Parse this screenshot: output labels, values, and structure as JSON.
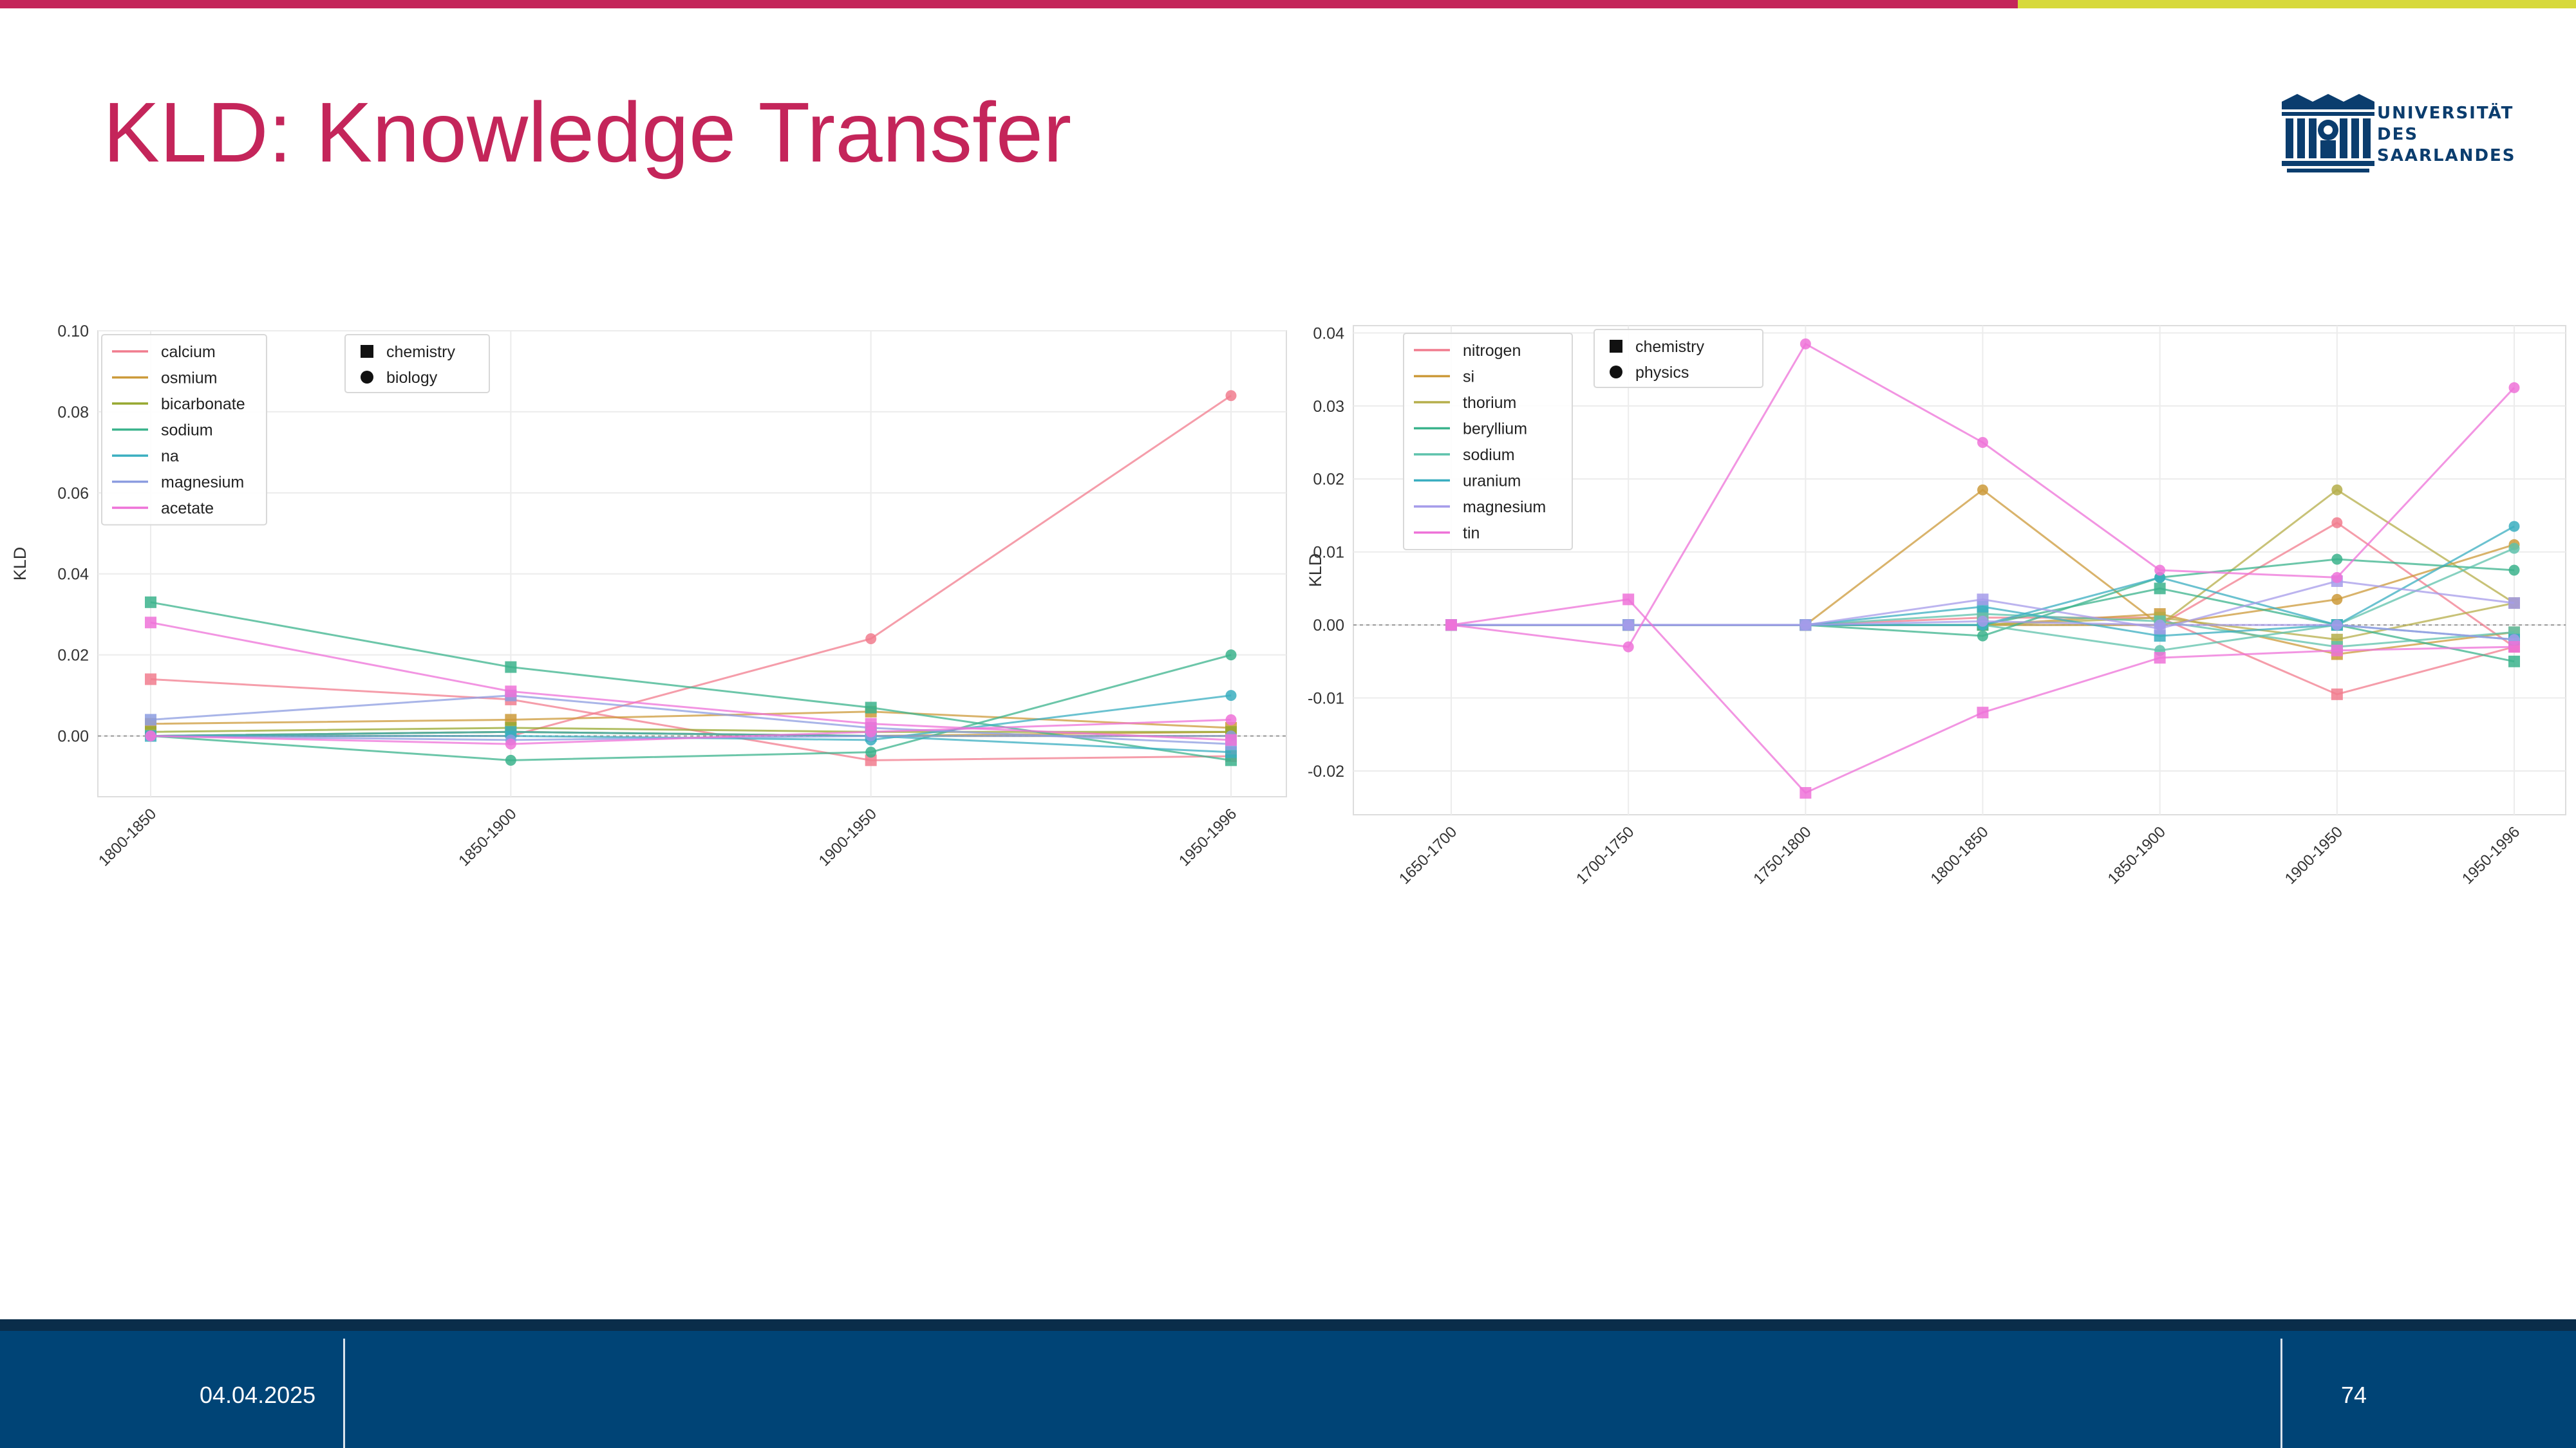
{
  "slide": {
    "title": "KLD: Knowledge Transfer",
    "date": "04.04.2025",
    "page_number": "74",
    "logo_text": [
      "UNIVERSITÄT",
      "DES",
      "SAARLANDES"
    ],
    "colors": {
      "accent": "#c4255a",
      "accent2": "#d7d93b",
      "footer": "#004476"
    }
  },
  "chart_data": [
    {
      "type": "line",
      "ylabel": "KLD",
      "xlabel": "",
      "categories": [
        "1800-1850",
        "1850-1900",
        "1900-1950",
        "1950-1996"
      ],
      "ylim": [
        -0.015,
        0.1
      ],
      "yticks": [
        "0.10",
        "0.08",
        "0.06",
        "0.04",
        "0.02",
        "0.00"
      ],
      "ytick_values": [
        0.1,
        0.08,
        0.06,
        0.04,
        0.02,
        0.0
      ],
      "grid": true,
      "legend_placement": "top-left",
      "markers": [
        {
          "label": "chemistry",
          "shape": "square"
        },
        {
          "label": "biology",
          "shape": "circle"
        }
      ],
      "series": [
        {
          "name": "calcium",
          "color": "#f17c8e",
          "chemistry": [
            0.014,
            0.009,
            -0.006,
            -0.005
          ],
          "biology": [
            0.0,
            0.0,
            0.024,
            0.084
          ]
        },
        {
          "name": "osmium",
          "color": "#cc9a3a",
          "chemistry": [
            0.003,
            0.004,
            0.006,
            0.002
          ],
          "biology": [
            0.0,
            0.001,
            0.0,
            0.001
          ]
        },
        {
          "name": "bicarbonate",
          "color": "#97a830",
          "chemistry": [
            0.001,
            0.002,
            0.001,
            0.001
          ],
          "biology": [
            0.0,
            0.001,
            0.0,
            0.0
          ]
        },
        {
          "name": "sodium",
          "color": "#3bb38c",
          "chemistry": [
            0.033,
            0.017,
            0.007,
            -0.006
          ],
          "biology": [
            0.0,
            -0.006,
            -0.004,
            0.02
          ]
        },
        {
          "name": "na",
          "color": "#3aaec0",
          "chemistry": [
            0.0,
            0.001,
            0.0,
            -0.004
          ],
          "biology": [
            0.0,
            0.0,
            -0.001,
            0.01
          ]
        },
        {
          "name": "magnesium",
          "color": "#8c9ce0",
          "chemistry": [
            0.004,
            0.01,
            0.002,
            -0.002
          ],
          "biology": [
            0.0,
            -0.001,
            0.0,
            0.0
          ]
        },
        {
          "name": "acetate",
          "color": "#ee72d8",
          "chemistry": [
            0.028,
            0.011,
            0.003,
            -0.001
          ],
          "biology": [
            0.0,
            -0.002,
            0.001,
            0.004
          ]
        }
      ]
    },
    {
      "type": "line",
      "ylabel": "KLD",
      "xlabel": "",
      "categories": [
        "1650-1700",
        "1700-1750",
        "1750-1800",
        "1800-1850",
        "1850-1900",
        "1900-1950",
        "1950-1996"
      ],
      "ylim": [
        -0.026,
        0.041
      ],
      "yticks": [
        "0.04",
        "0.03",
        "0.02",
        "0.01",
        "0.00",
        "-0.01",
        "-0.02"
      ],
      "ytick_values": [
        0.04,
        0.03,
        0.02,
        0.01,
        0.0,
        -0.01,
        -0.02
      ],
      "grid": true,
      "legend_placement": "top-left",
      "markers": [
        {
          "label": "chemistry",
          "shape": "square"
        },
        {
          "label": "physics",
          "shape": "circle"
        }
      ],
      "series": [
        {
          "name": "nitrogen",
          "color": "#f17c8e",
          "chemistry": [
            0.0,
            0.0,
            0.0,
            0.001,
            0.001,
            -0.0095,
            -0.003
          ],
          "physics": [
            0.0,
            0.0,
            0.0,
            0.0,
            0.0,
            0.014,
            -0.003
          ]
        },
        {
          "name": "si",
          "color": "#cc9a3a",
          "chemistry": [
            0.0,
            0.0,
            0.0,
            0.0,
            0.0015,
            -0.004,
            -0.001
          ],
          "physics": [
            0.0,
            0.0,
            0.0,
            0.0185,
            0.0,
            0.0035,
            0.011
          ]
        },
        {
          "name": "thorium",
          "color": "#b5ae4a",
          "chemistry": [
            0.0,
            0.0,
            0.0,
            0.0,
            0.001,
            -0.002,
            0.003
          ],
          "physics": [
            0.0,
            0.0,
            0.0,
            0.0,
            0.0,
            0.0185,
            0.003
          ]
        },
        {
          "name": "beryllium",
          "color": "#3bb38c",
          "chemistry": [
            0.0,
            0.0,
            0.0,
            0.0,
            0.005,
            0.0,
            -0.005
          ],
          "physics": [
            0.0,
            0.0,
            0.0,
            -0.0015,
            0.0065,
            0.009,
            0.0075
          ]
        },
        {
          "name": "sodium",
          "color": "#5ec2ab",
          "chemistry": [
            0.0,
            0.0,
            0.0,
            0.0015,
            0.0005,
            -0.003,
            -0.001
          ],
          "physics": [
            0.0,
            0.0,
            0.0,
            0.0,
            -0.0035,
            0.0,
            0.0105
          ]
        },
        {
          "name": "uranium",
          "color": "#3aaec0",
          "chemistry": [
            0.0,
            0.0,
            0.0,
            0.0025,
            -0.0015,
            0.0,
            -0.002
          ],
          "physics": [
            0.0,
            0.0,
            0.0,
            0.0,
            0.0065,
            0.0,
            0.0135
          ]
        },
        {
          "name": "magnesium",
          "color": "#a59bea",
          "chemistry": [
            0.0,
            0.0,
            0.0,
            0.0035,
            -0.0005,
            0.006,
            0.003
          ],
          "physics": [
            0.0,
            0.0,
            0.0,
            0.0005,
            0.0,
            0.0,
            -0.002
          ]
        },
        {
          "name": "tin",
          "color": "#ee72d8",
          "chemistry": [
            0.0,
            0.0035,
            -0.023,
            -0.012,
            -0.0045,
            -0.0035,
            -0.003
          ],
          "physics": [
            0.0,
            -0.003,
            0.0385,
            0.025,
            0.0075,
            0.0065,
            0.0325
          ]
        }
      ]
    }
  ]
}
